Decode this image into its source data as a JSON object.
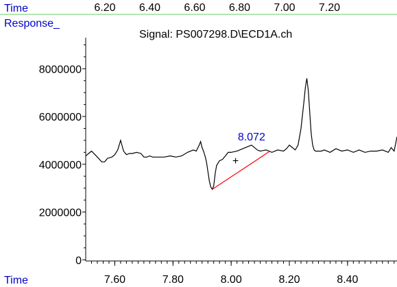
{
  "chart_data": {
    "type": "line",
    "title": "Signal: PS007298.D\\ECD1A.ch",
    "top_axis": {
      "label": "Time",
      "ticks": [
        "6.20",
        "6.40",
        "6.60",
        "6.80",
        "7.00",
        "7.20"
      ]
    },
    "bottom_axis": {
      "label": "Time",
      "range": [
        7.5,
        8.57
      ],
      "ticks": [
        7.6,
        7.8,
        8.0,
        8.2,
        8.4
      ],
      "tick_labels": [
        "7.60",
        "7.80",
        "8.00",
        "8.20",
        "8.40"
      ]
    },
    "y_axis": {
      "label": "Response_",
      "range": [
        -50000,
        9300000
      ],
      "ticks": [
        0,
        2000000,
        4000000,
        6000000,
        8000000
      ],
      "tick_labels": [
        "0",
        "2000000",
        "4000000",
        "6000000",
        "8000000"
      ]
    },
    "series": [
      {
        "x": [
          7.5,
          7.52,
          7.54,
          7.555,
          7.565,
          7.575,
          7.59,
          7.6,
          7.61,
          7.62,
          7.63,
          7.64,
          7.65,
          7.66,
          7.675,
          7.69,
          7.7,
          7.71,
          7.72,
          7.73,
          7.75,
          7.77,
          7.79,
          7.81,
          7.83,
          7.85,
          7.87,
          7.88,
          7.89,
          7.895,
          7.9,
          7.905,
          7.91,
          7.915,
          7.92,
          7.925,
          7.93,
          7.935,
          7.94,
          7.945,
          7.95,
          7.96,
          7.97,
          7.98,
          7.99,
          8.0,
          8.02,
          8.04,
          8.06,
          8.07,
          8.08,
          8.09,
          8.1,
          8.12,
          8.14,
          8.16,
          8.18,
          8.19,
          8.2,
          8.21,
          8.22,
          8.23,
          8.24,
          8.25,
          8.255,
          8.26,
          8.265,
          8.27,
          8.275,
          8.28,
          8.285,
          8.29,
          8.3,
          8.31,
          8.32,
          8.34,
          8.36,
          8.38,
          8.4,
          8.42,
          8.44,
          8.46,
          8.48,
          8.5,
          8.52,
          8.54,
          8.55,
          8.56,
          8.57
        ],
        "y": [
          4350000,
          4550000,
          4300000,
          4100000,
          4100000,
          4250000,
          4300000,
          4400000,
          4600000,
          5000000,
          4550000,
          4400000,
          4450000,
          4450000,
          4500000,
          4450000,
          4300000,
          4300000,
          4350000,
          4300000,
          4300000,
          4300000,
          4350000,
          4300000,
          4350000,
          4500000,
          4600000,
          4550000,
          4800000,
          4950000,
          4700000,
          4550000,
          4350000,
          4100000,
          3700000,
          3300000,
          3050000,
          2950000,
          3100000,
          3600000,
          3950000,
          4150000,
          4200000,
          4350000,
          4500000,
          4500000,
          4550000,
          4650000,
          4750000,
          4800000,
          4700000,
          4600000,
          4550000,
          4600000,
          4500000,
          4600000,
          4550000,
          4650000,
          4800000,
          4700000,
          4600000,
          4800000,
          5500000,
          6600000,
          7200000,
          7600000,
          7100000,
          6200000,
          5300000,
          4800000,
          4600000,
          4550000,
          4550000,
          4550000,
          4600000,
          4500000,
          4650000,
          4550000,
          4600000,
          4500000,
          4600000,
          4500000,
          4550000,
          4550000,
          4600000,
          4500000,
          4700000,
          4550000,
          5150000
        ]
      }
    ],
    "baseline": {
      "x": [
        7.935,
        8.13
      ],
      "y": [
        2950000,
        4520000
      ]
    },
    "annotations": [
      {
        "text": "8.072",
        "x": 8.07,
        "y": 5000000
      },
      {
        "text": "+",
        "x": 8.015,
        "y": 4000000
      }
    ],
    "colors": {
      "labels": "#0000cc",
      "trace": "#000000",
      "baseline": "#ff0000",
      "rule": "#66cc66"
    }
  }
}
